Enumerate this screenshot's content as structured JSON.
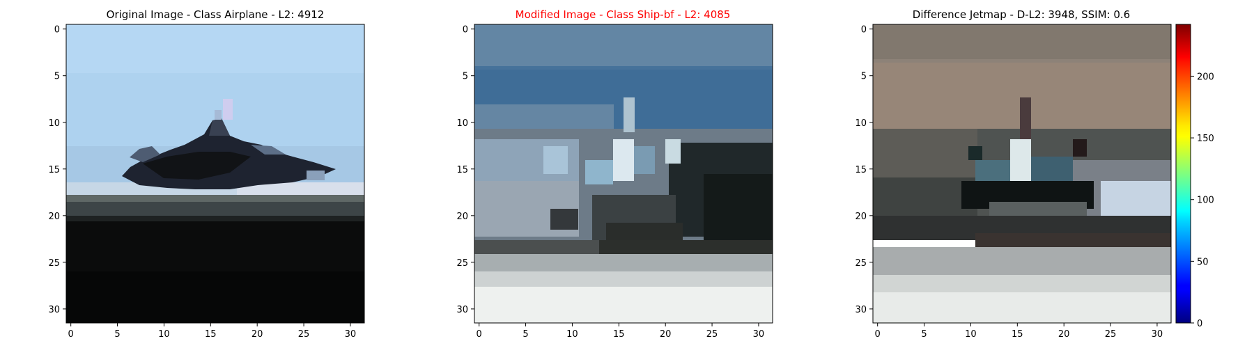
{
  "chart_data": [
    {
      "type": "heatmap",
      "kind": "image",
      "title": "Original Image - Class Airplane - L2: 4912",
      "title_color": "#000000",
      "xlim": [
        0,
        31
      ],
      "ylim": [
        0,
        31
      ],
      "y_inverted": true,
      "xticks": [
        "0",
        "5",
        "10",
        "15",
        "20",
        "25",
        "30"
      ],
      "yticks": [
        "0",
        "5",
        "10",
        "15",
        "20",
        "25",
        "30"
      ],
      "grid": false
    },
    {
      "type": "heatmap",
      "kind": "image",
      "title": "Modified Image - Class Ship-bf - L2: 4085",
      "title_color": "#ff0000",
      "xlim": [
        0,
        31
      ],
      "ylim": [
        0,
        31
      ],
      "y_inverted": true,
      "xticks": [
        "0",
        "5",
        "10",
        "15",
        "20",
        "25",
        "30"
      ],
      "yticks": [
        "0",
        "5",
        "10",
        "15",
        "20",
        "25",
        "30"
      ],
      "grid": false
    },
    {
      "type": "heatmap",
      "kind": "image",
      "title": "Difference Jetmap - D-L2: 3948, SSIM: 0.6",
      "title_color": "#000000",
      "xlim": [
        0,
        31
      ],
      "ylim": [
        0,
        31
      ],
      "y_inverted": true,
      "xticks": [
        "0",
        "5",
        "10",
        "15",
        "20",
        "25",
        "30"
      ],
      "yticks": [
        "0",
        "5",
        "10",
        "15",
        "20",
        "25",
        "30"
      ],
      "grid": false,
      "colorbar": {
        "colormap": "jet",
        "range": [
          0,
          242
        ],
        "ticks": [
          "0",
          "50",
          "100",
          "150",
          "200"
        ],
        "tick_values": [
          0,
          50,
          100,
          150,
          200
        ]
      }
    }
  ]
}
